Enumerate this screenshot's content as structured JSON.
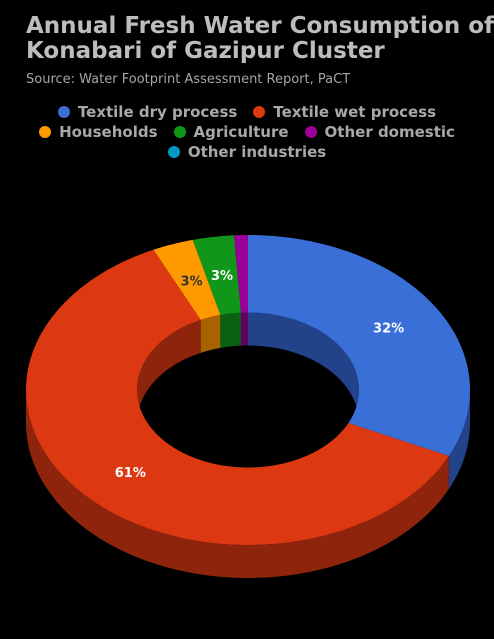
{
  "chart_data": {
    "type": "pie",
    "variant": "3d-donut",
    "title_lines": [
      "Annual Fresh Water Consumption of",
      "Konabari of Gazipur Cluster"
    ],
    "subtitle": "Source: Water Footprint Assessment Report, PaCT",
    "legend_position": "top-center",
    "slices": [
      {
        "name": "Textile dry process",
        "value": 32,
        "label": "32%",
        "color": "#3a6fd8",
        "side_color": "#22438a",
        "label_color": "#ffffff"
      },
      {
        "name": "Textile wet process",
        "value": 61,
        "label": "61%",
        "color": "#dc3912",
        "side_color": "#8e240b",
        "label_color": "#ffffff"
      },
      {
        "name": "Households",
        "value": 3,
        "label": "3%",
        "color": "#ff9900",
        "side_color": "#a66300",
        "label_color": "#333333"
      },
      {
        "name": "Agriculture",
        "value": 3,
        "label": "3%",
        "color": "#109618",
        "side_color": "#0a6110",
        "label_color": "#ffffff"
      },
      {
        "name": "Other domestic",
        "value": 1,
        "label": "",
        "color": "#990099",
        "side_color": "#630063",
        "label_color": "#ffffff"
      },
      {
        "name": "Other industries",
        "value": 0,
        "label": "",
        "color": "#0099c6",
        "side_color": "#006380",
        "label_color": "#ffffff"
      }
    ],
    "legend_rows": [
      [
        0,
        1
      ],
      [
        2,
        3,
        4
      ],
      [
        5
      ]
    ]
  }
}
